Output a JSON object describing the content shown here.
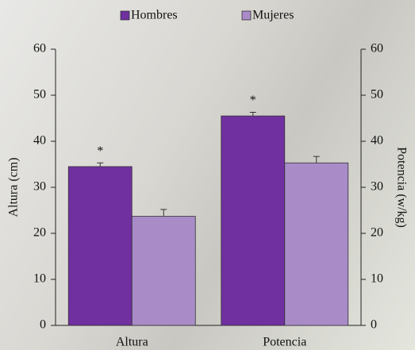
{
  "chart_data": {
    "type": "bar",
    "y_label": "Altura (cm)",
    "y2_label": "Potencia (w/kg)",
    "categories": [
      "Altura",
      "Potencia"
    ],
    "series": [
      {
        "name": "Hombres",
        "color": "#7030a0",
        "values": [
          34.5,
          45.5
        ],
        "errors": [
          0.8,
          0.8
        ]
      },
      {
        "name": "Mujeres",
        "color": "#a98bc8",
        "values": [
          23.7,
          35.3
        ],
        "errors": [
          1.5,
          1.4
        ]
      }
    ],
    "annotations": [
      "*",
      "*"
    ],
    "ylim": [
      0,
      60
    ],
    "yticks": [
      0,
      10,
      20,
      30,
      40,
      50,
      60
    ],
    "y2lim": [
      0,
      60
    ],
    "y2ticks": [
      0,
      10,
      20,
      30,
      40,
      50,
      60
    ],
    "legend": "top",
    "grid": false
  }
}
